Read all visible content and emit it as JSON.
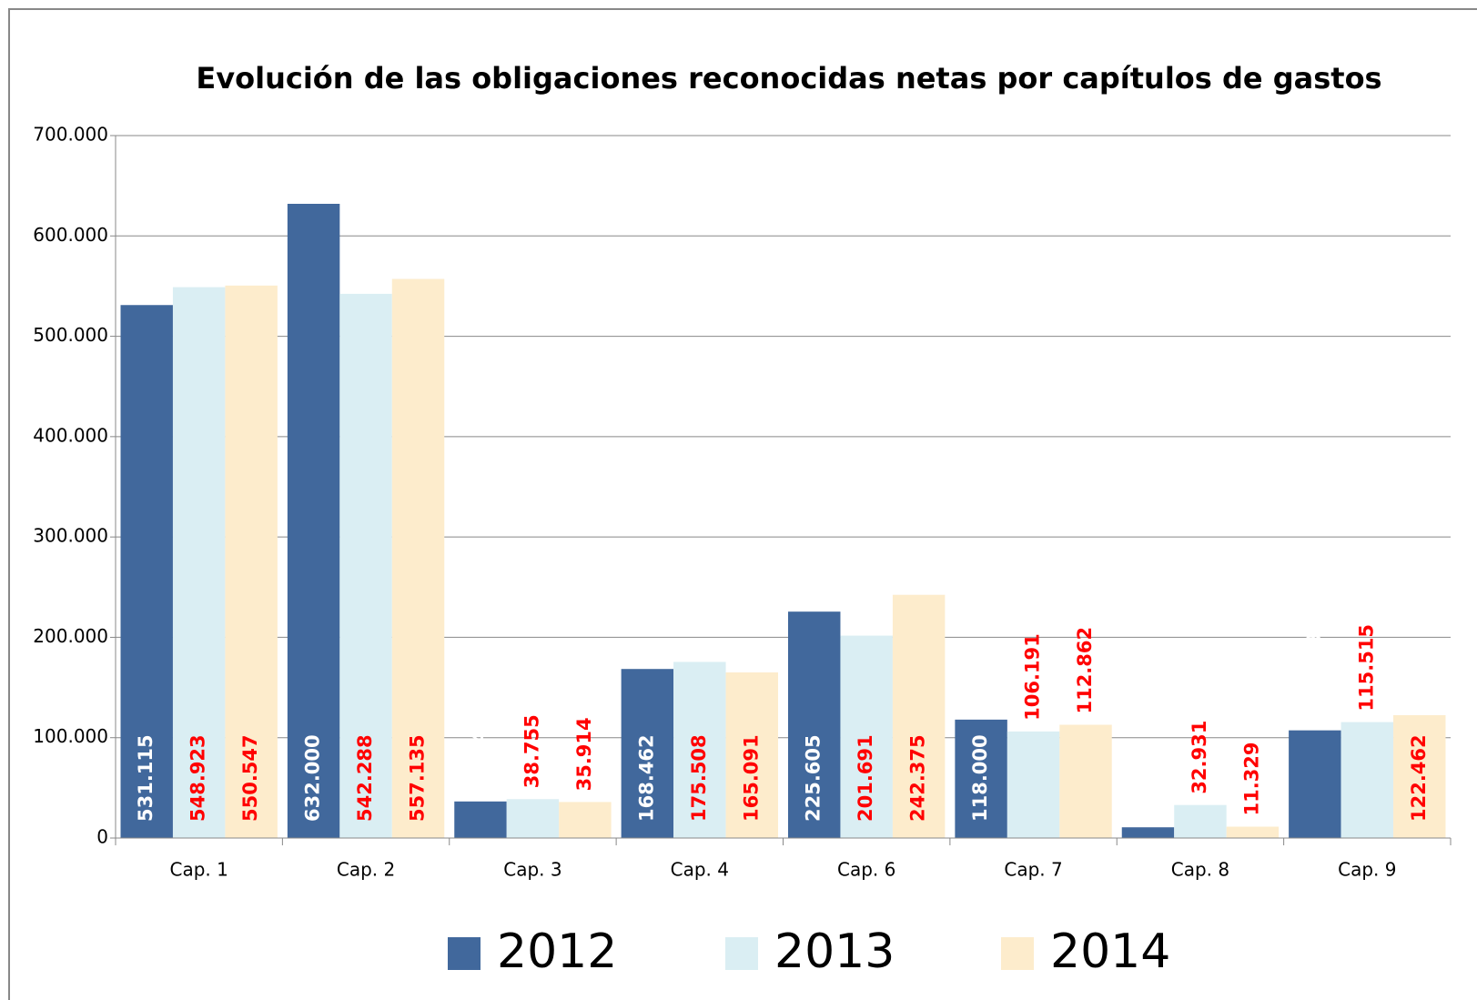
{
  "chart_data": {
    "type": "bar",
    "title": "Evolución de las obligaciones reconocidas netas por capítulos de gastos",
    "categories": [
      "Cap. 1",
      "Cap. 2",
      "Cap. 3",
      "Cap. 4",
      "Cap. 6",
      "Cap. 7",
      "Cap. 8",
      "Cap. 9"
    ],
    "series": [
      {
        "name": "2012",
        "color": "#41689c",
        "label_color": "#ffffff",
        "values": [
          531115,
          632000,
          36449,
          168462,
          225605,
          118000,
          10695,
          107309
        ],
        "value_labels": [
          "531.115",
          "632.000",
          "36.449",
          "168.462",
          "225.605",
          "118.000",
          "10.695",
          "107.309"
        ]
      },
      {
        "name": "2013",
        "color": "#daeef3",
        "label_color": "#ff0000",
        "values": [
          548923,
          542288,
          38755,
          175508,
          201691,
          106191,
          32931,
          115515
        ],
        "value_labels": [
          "548.923",
          "542.288",
          "38.755",
          "175.508",
          "201.691",
          "106.191",
          "32.931",
          "115.515"
        ]
      },
      {
        "name": "2014",
        "color": "#fdeccc",
        "label_color": "#ff0000",
        "values": [
          550547,
          557135,
          35914,
          165091,
          242375,
          112862,
          11329,
          122462
        ],
        "value_labels": [
          "550.547",
          "557.135",
          "35.914",
          "165.091",
          "242.375",
          "112.862",
          "11.329",
          "122.462"
        ]
      }
    ],
    "ylim": [
      0,
      700000
    ],
    "yticks": [
      0,
      {
        "value": 100000,
        "label": "100.000"
      },
      {
        "value": 200000,
        "label": "200.000"
      },
      {
        "value": 300000,
        "label": "300.000"
      },
      {
        "value": 400000,
        "label": "400.000"
      },
      {
        "value": 500000,
        "label": "500.000"
      },
      {
        "value": 600000,
        "label": "600.000"
      },
      {
        "value": 700000,
        "label": "700.000"
      }
    ],
    "grid": true,
    "legend": "bottom"
  }
}
